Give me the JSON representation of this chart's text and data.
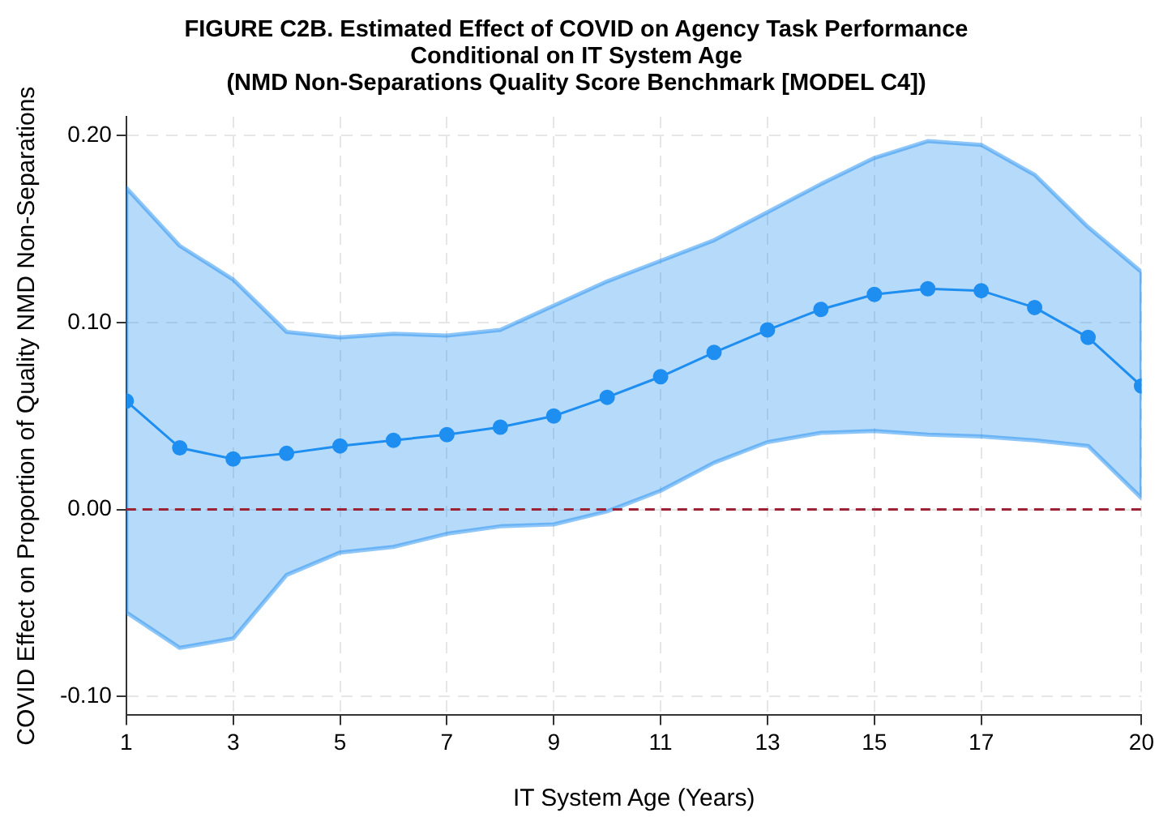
{
  "chart_data": {
    "type": "line",
    "title": "FIGURE C2B. Estimated Effect of COVID on Agency Task Performance\nConditional on IT System Age\n(NMD Non-Separations Quality Score Benchmark [MODEL C4])",
    "xlabel": "IT System Age (Years)",
    "ylabel": "COVID Effect on Proportion of Quality NMD Non-Separations",
    "x": [
      1,
      2,
      3,
      4,
      5,
      6,
      7,
      8,
      9,
      10,
      11,
      12,
      13,
      14,
      15,
      16,
      17,
      18,
      19,
      20
    ],
    "series": [
      {
        "color": "#1f8ef1",
        "values": [
          0.058,
          0.033,
          0.027,
          0.03,
          0.034,
          0.037,
          0.04,
          0.044,
          0.05,
          0.06,
          0.071,
          0.084,
          0.096,
          0.107,
          0.115,
          0.118,
          0.117,
          0.108,
          0.092,
          0.066
        ],
        "lower": [
          -0.055,
          -0.074,
          -0.069,
          -0.035,
          -0.023,
          -0.02,
          -0.013,
          -0.009,
          -0.008,
          -0.001,
          0.01,
          0.025,
          0.036,
          0.041,
          0.042,
          0.04,
          0.039,
          0.037,
          0.034,
          0.006
        ],
        "upper": [
          0.172,
          0.141,
          0.123,
          0.095,
          0.092,
          0.094,
          0.093,
          0.096,
          0.109,
          0.122,
          0.133,
          0.144,
          0.159,
          0.174,
          0.188,
          0.197,
          0.195,
          0.179,
          0.151,
          0.127
        ]
      }
    ],
    "xlim": [
      1,
      20
    ],
    "xticks": [
      1,
      3,
      5,
      7,
      9,
      11,
      13,
      15,
      17,
      20
    ],
    "ylim": [
      -0.11,
      0.21
    ],
    "yticks": [
      {
        "value": -0.1,
        "label": "-0.10"
      },
      {
        "value": 0,
        "label": "0.00"
      },
      {
        "value": 0.1,
        "label": "0.10"
      },
      {
        "value": 0.2,
        "label": "0.20"
      }
    ],
    "ref_lines": [
      {
        "axis": "y",
        "value": 0,
        "color": "#9b2335",
        "line_style": "dashed"
      }
    ],
    "grid": true,
    "legend": false,
    "marker": "circle",
    "line_style": "solid"
  }
}
